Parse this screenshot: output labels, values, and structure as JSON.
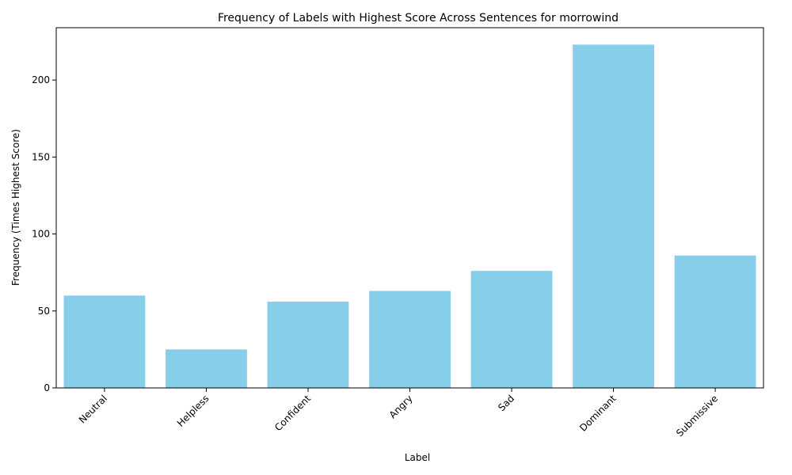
{
  "chart_data": {
    "type": "bar",
    "title": "Frequency of Labels with Highest Score Across Sentences for morrowind",
    "xlabel": "Label",
    "ylabel": "Frequency (Times Highest Score)",
    "categories": [
      "Neutral",
      "Helpless",
      "Confident",
      "Angry",
      "Sad",
      "Dominant",
      "Submissive"
    ],
    "values": [
      60,
      25,
      56,
      63,
      76,
      223,
      86
    ],
    "ylim": [
      0,
      234
    ],
    "yticks": [
      0,
      50,
      100,
      150,
      200
    ],
    "bar_color": "#87ceeb",
    "grid": false,
    "legend": "none"
  }
}
